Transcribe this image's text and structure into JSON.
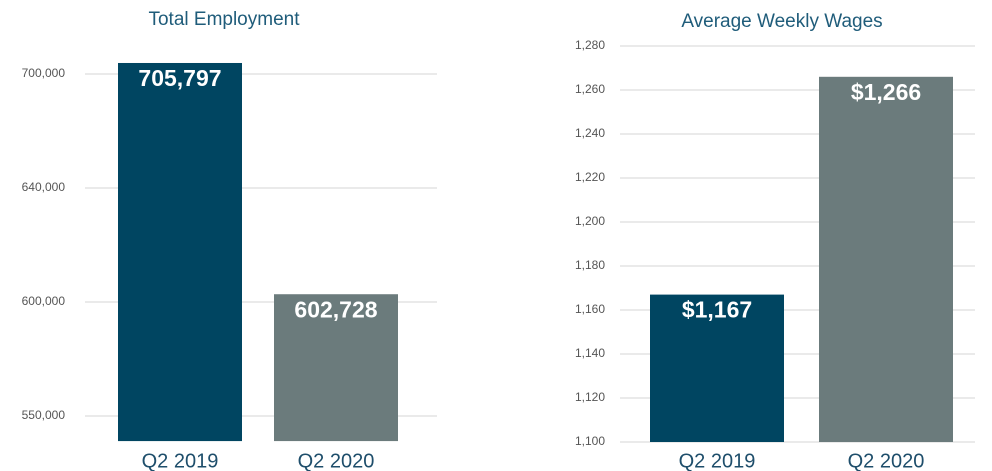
{
  "chart_data": [
    {
      "type": "bar",
      "title": "Total Employment",
      "categories": [
        "Q2 2019",
        "Q2 2020"
      ],
      "values": [
        705797,
        602728
      ],
      "value_labels": [
        "705,797",
        "602,728"
      ],
      "colors": [
        "#004561",
        "#6b7b7c"
      ],
      "ylim": [
        539000,
        710000
      ],
      "yticks": [
        {
          "value": 550000,
          "label": "550,000"
        },
        {
          "value": 600000,
          "label": "600,000"
        },
        {
          "value": 640000,
          "label": "640,000"
        },
        {
          "value": 700000,
          "label": "700,000"
        }
      ],
      "grid": true
    },
    {
      "type": "bar",
      "title": "Average Weekly Wages",
      "categories": [
        "Q2 2019",
        "Q2 2020"
      ],
      "values": [
        1167,
        1266
      ],
      "value_labels": [
        "$1,167",
        "$1,266"
      ],
      "colors": [
        "#004561",
        "#6b7b7c"
      ],
      "ylim": [
        1100,
        1280
      ],
      "yticks": [
        {
          "value": 1100,
          "label": "1,100"
        },
        {
          "value": 1120,
          "label": "1,120"
        },
        {
          "value": 1140,
          "label": "1,140"
        },
        {
          "value": 1160,
          "label": "1,160"
        },
        {
          "value": 1180,
          "label": "1,180"
        },
        {
          "value": 1200,
          "label": "1,200"
        },
        {
          "value": 1220,
          "label": "1,220"
        },
        {
          "value": 1240,
          "label": "1,240"
        },
        {
          "value": 1260,
          "label": "1,260"
        },
        {
          "value": 1280,
          "label": "1,280"
        }
      ],
      "grid": true
    }
  ]
}
